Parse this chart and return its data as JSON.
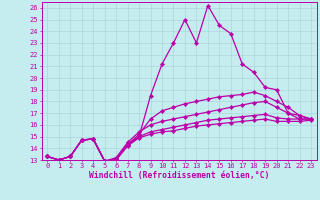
{
  "xlabel": "Windchill (Refroidissement éolien,°C)",
  "xlim": [
    -0.5,
    23.5
  ],
  "ylim": [
    13,
    26.5
  ],
  "xticks": [
    0,
    1,
    2,
    3,
    4,
    5,
    6,
    7,
    8,
    9,
    10,
    11,
    12,
    13,
    14,
    15,
    16,
    17,
    18,
    19,
    20,
    21,
    22,
    23
  ],
  "yticks": [
    13,
    14,
    15,
    16,
    17,
    18,
    19,
    20,
    21,
    22,
    23,
    24,
    25,
    26
  ],
  "background_color": "#c5ecee",
  "grid_color": "#aad8dc",
  "line_color": "#bb00aa",
  "series": [
    [
      13.3,
      13.0,
      13.3,
      14.7,
      14.8,
      12.9,
      13.1,
      14.3,
      15.0,
      18.5,
      21.2,
      23.0,
      25.0,
      23.0,
      26.2,
      24.5,
      23.8,
      21.2,
      20.5,
      19.2,
      19.0,
      17.0,
      16.5,
      16.5
    ],
    [
      13.3,
      13.0,
      13.3,
      14.7,
      14.8,
      12.9,
      13.1,
      14.3,
      15.2,
      16.5,
      17.2,
      17.5,
      17.8,
      18.0,
      18.2,
      18.4,
      18.5,
      18.6,
      18.8,
      18.5,
      18.0,
      17.5,
      16.8,
      16.5
    ],
    [
      13.3,
      13.0,
      13.3,
      14.7,
      14.8,
      12.9,
      13.2,
      14.5,
      15.4,
      16.0,
      16.3,
      16.5,
      16.7,
      16.9,
      17.1,
      17.3,
      17.5,
      17.7,
      17.9,
      18.0,
      17.5,
      17.0,
      16.8,
      16.5
    ],
    [
      13.3,
      13.0,
      13.3,
      14.7,
      14.8,
      12.9,
      13.0,
      14.3,
      15.0,
      15.4,
      15.6,
      15.8,
      16.0,
      16.2,
      16.4,
      16.5,
      16.6,
      16.7,
      16.8,
      16.9,
      16.6,
      16.5,
      16.5,
      16.5
    ],
    [
      13.3,
      13.0,
      13.3,
      14.7,
      14.8,
      12.9,
      13.0,
      14.2,
      14.9,
      15.2,
      15.4,
      15.5,
      15.7,
      15.9,
      16.0,
      16.1,
      16.2,
      16.3,
      16.4,
      16.5,
      16.3,
      16.3,
      16.3,
      16.4
    ]
  ],
  "marker": "D",
  "markersize": 2.2,
  "linewidth": 0.9,
  "tick_fontsize": 5.0,
  "label_fontsize": 5.8
}
